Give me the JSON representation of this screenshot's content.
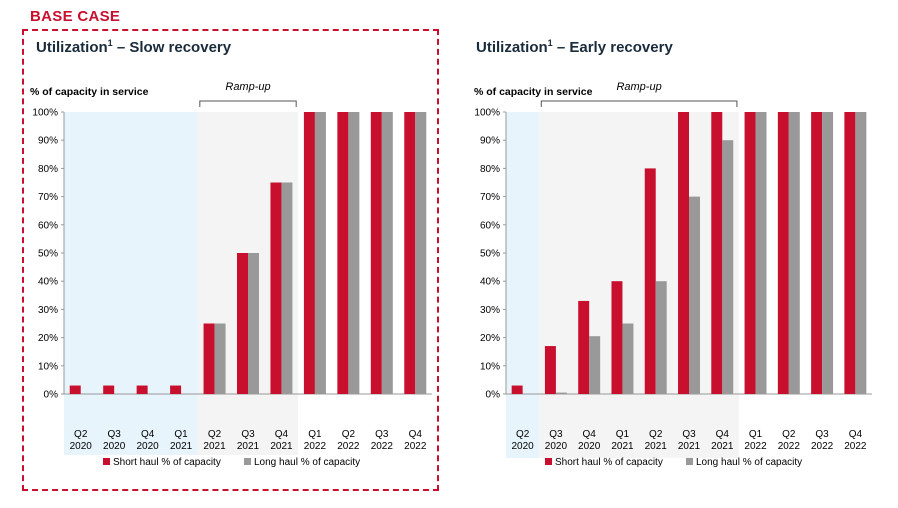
{
  "base_case_label": "BASE CASE",
  "colors": {
    "short_haul": "#c8102e",
    "long_haul": "#999999",
    "pre_shade": "#e8f4fb",
    "ramp_shade": "#f4f4f4"
  },
  "chart_data": [
    {
      "type": "bar",
      "title": "Utilization",
      "title_superscript": "1",
      "title_suffix": "– Slow recovery",
      "ylabel": "% of capacity in service",
      "ylim": [
        0,
        100
      ],
      "yticks": [
        "0%",
        "10%",
        "20%",
        "30%",
        "40%",
        "50%",
        "60%",
        "70%",
        "80%",
        "90%",
        "100%"
      ],
      "categories": [
        [
          "Q2",
          "2020"
        ],
        [
          "Q3",
          "2020"
        ],
        [
          "Q4",
          "2020"
        ],
        [
          "Q1",
          "2021"
        ],
        [
          "Q2",
          "2021"
        ],
        [
          "Q3",
          "2021"
        ],
        [
          "Q4",
          "2021"
        ],
        [
          "Q1",
          "2022"
        ],
        [
          "Q2",
          "2022"
        ],
        [
          "Q3",
          "2022"
        ],
        [
          "Q4",
          "2022"
        ]
      ],
      "series": [
        {
          "name": "Short haul % of capacity",
          "color": "#c8102e",
          "values": [
            3,
            3,
            3,
            3,
            25,
            50,
            75,
            100,
            100,
            100,
            100
          ]
        },
        {
          "name": "Long haul % of capacity",
          "color": "#999999",
          "values": [
            0,
            0,
            0,
            0,
            25,
            50,
            75,
            100,
            100,
            100,
            100
          ]
        }
      ],
      "shaded_periods": {
        "pre": [
          0,
          3
        ],
        "ramp": [
          4,
          6
        ]
      },
      "ramp_label": "Ramp-up",
      "ramp_bracket": [
        4,
        6
      ],
      "grid": false,
      "legend": "bottom"
    },
    {
      "type": "bar",
      "title": "Utilization",
      "title_superscript": "1",
      "title_suffix": "– Early recovery",
      "ylabel": "% of capacity in service",
      "ylim": [
        0,
        100
      ],
      "yticks": [
        "0%",
        "10%",
        "20%",
        "30%",
        "40%",
        "50%",
        "60%",
        "70%",
        "80%",
        "90%",
        "100%"
      ],
      "categories": [
        [
          "Q2",
          "2020"
        ],
        [
          "Q3",
          "2020"
        ],
        [
          "Q4",
          "2020"
        ],
        [
          "Q1",
          "2021"
        ],
        [
          "Q2",
          "2021"
        ],
        [
          "Q3",
          "2021"
        ],
        [
          "Q4",
          "2021"
        ],
        [
          "Q1",
          "2022"
        ],
        [
          "Q2",
          "2022"
        ],
        [
          "Q3",
          "2022"
        ],
        [
          "Q4",
          "2022"
        ]
      ],
      "series": [
        {
          "name": "Short haul % of capacity",
          "color": "#c8102e",
          "values": [
            3,
            17,
            33,
            40,
            80,
            100,
            100,
            100,
            100,
            100,
            100
          ]
        },
        {
          "name": "Long haul % of capacity",
          "color": "#999999",
          "values": [
            0,
            0.5,
            20.5,
            25,
            40,
            70,
            90,
            100,
            100,
            100,
            100
          ]
        }
      ],
      "shaded_periods": {
        "pre": [
          0,
          0
        ],
        "ramp": [
          1,
          6
        ]
      },
      "ramp_label": "Ramp-up",
      "ramp_bracket": [
        1,
        6
      ],
      "grid": false,
      "legend": "bottom"
    }
  ]
}
